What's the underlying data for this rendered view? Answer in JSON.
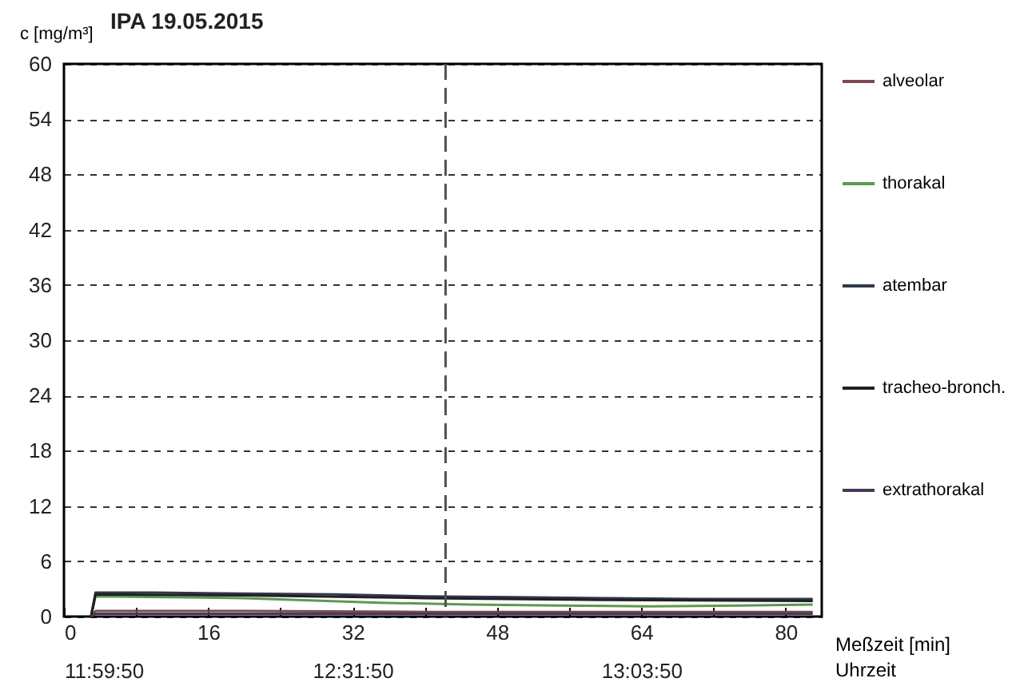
{
  "chart_data": {
    "type": "line",
    "title": "IPA 19.05.2015",
    "ylabel": "c [mg/m³]",
    "xlabel": "Meßzeit [min]",
    "x2label": "Uhrzeit",
    "xlim": [
      0,
      84
    ],
    "xticks": [
      0,
      {
        "value": 8,
        "label": null
      },
      16,
      {
        "value": 24,
        "label": null
      },
      32,
      {
        "value": 40,
        "label": null
      },
      48,
      {
        "value": 56,
        "label": null
      },
      64,
      {
        "value": 72,
        "label": null
      },
      80
    ],
    "x2lim": [
      11.99722,
      13.39722
    ],
    "x2ticks": [
      {
        "value": 11.99722,
        "label": "11:59:50"
      },
      {
        "value": 12.53056,
        "label": "12:31:50"
      },
      {
        "value": 13.06389,
        "label": "13:03:50"
      }
    ],
    "ylim": [
      0,
      60
    ],
    "yticks": [
      0,
      6,
      12,
      18,
      24,
      30,
      36,
      42,
      48,
      54,
      60
    ],
    "grid": "y",
    "legend": "right",
    "ref_lines": [
      {
        "axis": "x",
        "value": 42.3,
        "color": "#505050",
        "line_style": "dashed"
      }
    ],
    "series": [
      {
        "name": "alveolar",
        "color": "#7a4a50",
        "x": [
          3,
          3.5,
          20,
          40,
          60,
          83
        ],
        "values": [
          0,
          0.6,
          0.6,
          0.5,
          0.5,
          0.5
        ]
      },
      {
        "name": "thorakal",
        "color": "#5a9a50",
        "x": [
          3,
          3.5,
          20,
          35,
          45,
          55,
          65,
          75,
          83
        ],
        "values": [
          0,
          2.2,
          2.0,
          1.5,
          1.3,
          1.2,
          1.1,
          1.2,
          1.3
        ]
      },
      {
        "name": "atembar",
        "color": "#303848",
        "x": [
          3,
          3.5,
          10,
          20,
          30,
          40,
          50,
          60,
          70,
          83
        ],
        "values": [
          0,
          2.6,
          2.6,
          2.5,
          2.4,
          2.2,
          2.1,
          2.0,
          1.9,
          1.9
        ]
      },
      {
        "name": "tracheo-bronch.",
        "color": "#202020",
        "x": [
          3,
          3.5,
          20,
          40,
          60,
          83
        ],
        "values": [
          0,
          2.4,
          2.3,
          2.0,
          1.8,
          1.7
        ]
      },
      {
        "name": "extrathorakal",
        "color": "#4a3858",
        "x": [
          3,
          3.5,
          20,
          40,
          60,
          83
        ],
        "values": [
          0,
          0.3,
          0.3,
          0.3,
          0.3,
          0.3
        ]
      }
    ]
  }
}
